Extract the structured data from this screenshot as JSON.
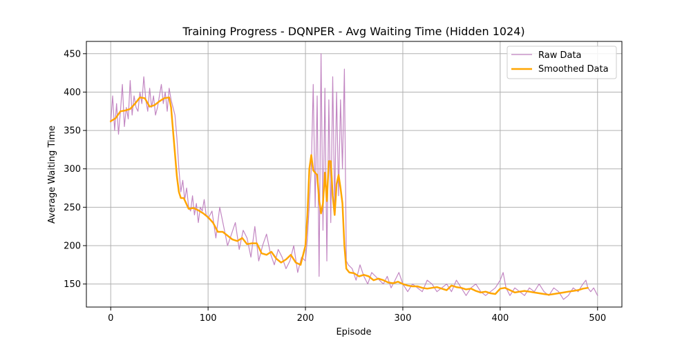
{
  "chart_data": {
    "type": "line",
    "title": "Training Progress - DQNPER - Avg Waiting Time (Hidden 1024)",
    "xlabel": "Episode",
    "ylabel": "Average Waiting Time",
    "xlim": [
      -25,
      525
    ],
    "ylim": [
      120,
      466
    ],
    "xticks": [
      0,
      100,
      200,
      300,
      400,
      500
    ],
    "yticks": [
      150,
      200,
      250,
      300,
      350,
      400,
      450
    ],
    "xtick_labels": [
      "0",
      "100",
      "200",
      "300",
      "400",
      "500"
    ],
    "ytick_labels": [
      "150",
      "200",
      "250",
      "300",
      "350",
      "400",
      "450"
    ],
    "grid": true,
    "legend_position": "top-right",
    "series": [
      {
        "name": "Raw Data",
        "color": "#bf7fbf",
        "style": "thin-line",
        "x": [
          0,
          2,
          4,
          6,
          8,
          10,
          12,
          14,
          16,
          18,
          20,
          22,
          24,
          26,
          28,
          30,
          32,
          34,
          36,
          38,
          40,
          42,
          44,
          46,
          48,
          50,
          52,
          54,
          56,
          58,
          60,
          62,
          64,
          66,
          68,
          70,
          72,
          74,
          76,
          78,
          80,
          82,
          84,
          86,
          88,
          90,
          92,
          94,
          96,
          98,
          100,
          104,
          108,
          112,
          116,
          120,
          124,
          128,
          132,
          136,
          140,
          144,
          148,
          152,
          156,
          160,
          164,
          168,
          172,
          176,
          180,
          184,
          188,
          192,
          196,
          200,
          202,
          204,
          206,
          208,
          210,
          212,
          214,
          216,
          218,
          220,
          222,
          224,
          226,
          228,
          230,
          232,
          234,
          236,
          238,
          240,
          242,
          244,
          248,
          252,
          256,
          260,
          264,
          268,
          272,
          276,
          280,
          284,
          288,
          292,
          296,
          300,
          305,
          310,
          315,
          320,
          325,
          330,
          335,
          340,
          345,
          350,
          355,
          360,
          365,
          370,
          375,
          380,
          385,
          390,
          395,
          400,
          403,
          406,
          410,
          415,
          420,
          425,
          430,
          435,
          440,
          445,
          450,
          455,
          460,
          465,
          470,
          475,
          480,
          485,
          488,
          490,
          493,
          496,
          500
        ],
        "values": [
          360,
          395,
          350,
          385,
          345,
          375,
          410,
          355,
          380,
          365,
          415,
          370,
          395,
          380,
          375,
          400,
          385,
          420,
          390,
          375,
          405,
          380,
          395,
          370,
          380,
          395,
          410,
          385,
          400,
          375,
          405,
          390,
          380,
          370,
          340,
          300,
          270,
          285,
          260,
          275,
          250,
          245,
          265,
          240,
          255,
          230,
          250,
          245,
          260,
          240,
          235,
          245,
          210,
          250,
          225,
          200,
          215,
          230,
          195,
          220,
          210,
          185,
          225,
          180,
          200,
          215,
          190,
          175,
          195,
          185,
          170,
          180,
          200,
          165,
          185,
          180,
          210,
          255,
          300,
          410,
          250,
          395,
          160,
          450,
          220,
          405,
          180,
          390,
          230,
          420,
          250,
          400,
          265,
          390,
          300,
          430,
          180,
          175,
          170,
          155,
          175,
          160,
          150,
          165,
          160,
          155,
          150,
          160,
          145,
          155,
          165,
          150,
          140,
          150,
          145,
          140,
          155,
          150,
          140,
          145,
          150,
          140,
          155,
          145,
          135,
          145,
          150,
          140,
          135,
          140,
          145,
          155,
          165,
          145,
          135,
          145,
          140,
          135,
          145,
          140,
          150,
          140,
          135,
          145,
          140,
          130,
          135,
          145,
          140,
          150,
          155,
          145,
          140,
          145,
          135
        ]
      },
      {
        "name": "Smoothed Data",
        "color": "#ffa500",
        "style": "thick-line",
        "x": [
          0,
          5,
          10,
          15,
          20,
          25,
          30,
          35,
          40,
          45,
          50,
          55,
          60,
          62,
          64,
          66,
          68,
          70,
          72,
          75,
          80,
          85,
          90,
          95,
          100,
          105,
          110,
          115,
          120,
          125,
          130,
          135,
          140,
          145,
          150,
          155,
          160,
          165,
          170,
          175,
          180,
          185,
          190,
          195,
          200,
          202,
          204,
          206,
          208,
          210,
          212,
          214,
          216,
          218,
          220,
          222,
          224,
          226,
          228,
          230,
          232,
          234,
          236,
          238,
          240,
          242,
          245,
          250,
          255,
          260,
          265,
          270,
          275,
          280,
          285,
          290,
          295,
          300,
          305,
          310,
          315,
          320,
          325,
          330,
          335,
          340,
          345,
          350,
          355,
          360,
          365,
          370,
          375,
          380,
          385,
          390,
          395,
          400,
          405,
          410,
          415,
          420,
          425,
          430,
          435,
          440,
          445,
          450,
          455,
          460,
          465,
          470,
          475,
          480,
          485,
          490
        ],
        "values": [
          362,
          366,
          375,
          376,
          378,
          385,
          393,
          392,
          381,
          383,
          388,
          392,
          393,
          380,
          350,
          320,
          290,
          270,
          262,
          262,
          248,
          249,
          246,
          242,
          237,
          230,
          218,
          218,
          213,
          208,
          206,
          210,
          202,
          203,
          203,
          190,
          188,
          192,
          183,
          178,
          182,
          188,
          178,
          175,
          200,
          240,
          300,
          318,
          298,
          295,
          292,
          260,
          242,
          255,
          295,
          258,
          310,
          310,
          265,
          240,
          280,
          292,
          275,
          255,
          200,
          170,
          165,
          164,
          160,
          162,
          160,
          155,
          157,
          155,
          152,
          151,
          153,
          150,
          148,
          147,
          147,
          145,
          144,
          145,
          146,
          144,
          142,
          148,
          146,
          145,
          143,
          144,
          141,
          139,
          140,
          138,
          137,
          144,
          145,
          142,
          139,
          140,
          141,
          140,
          139,
          138,
          137,
          136,
          137,
          138,
          139,
          140,
          141,
          142,
          144,
          145
        ]
      }
    ]
  }
}
